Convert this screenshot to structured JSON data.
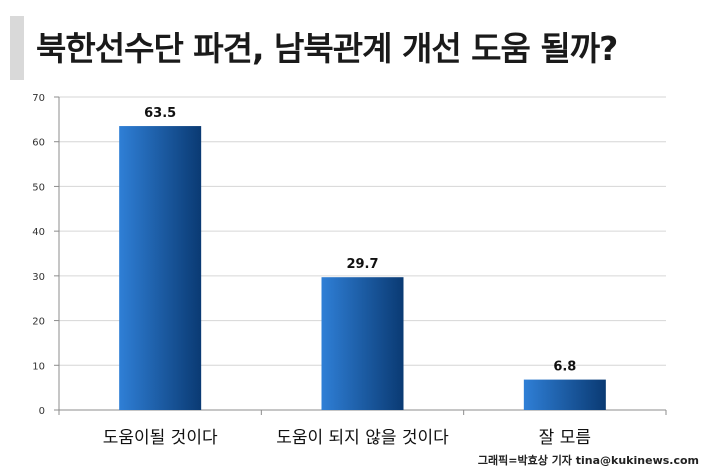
{
  "header": {
    "title": "북한선수단 파견, 남북관계 개선 도움 될까?"
  },
  "credit": "그래픽=박효상 기자 tina@kukinews.com",
  "colors": {
    "bar_dark": "#0a3a73",
    "bar_light": "#2f7fd6",
    "axis": "#8c8c8c",
    "grid": "#d6d6d6"
  },
  "chart_data": {
    "type": "bar",
    "categories": [
      "도움이될 것이다",
      "도움이 되지 않을 것이다",
      "잘 모름"
    ],
    "values": [
      63.5,
      29.7,
      6.8
    ],
    "data_labels": [
      "63.5",
      "29.7",
      "6.8"
    ],
    "title": "",
    "xlabel": "",
    "ylabel": "",
    "ylim": [
      0,
      70
    ],
    "yticks": [
      "0",
      "10",
      "20",
      "30",
      "40",
      "50",
      "60",
      "70"
    ],
    "grid": true,
    "legend": "none"
  }
}
